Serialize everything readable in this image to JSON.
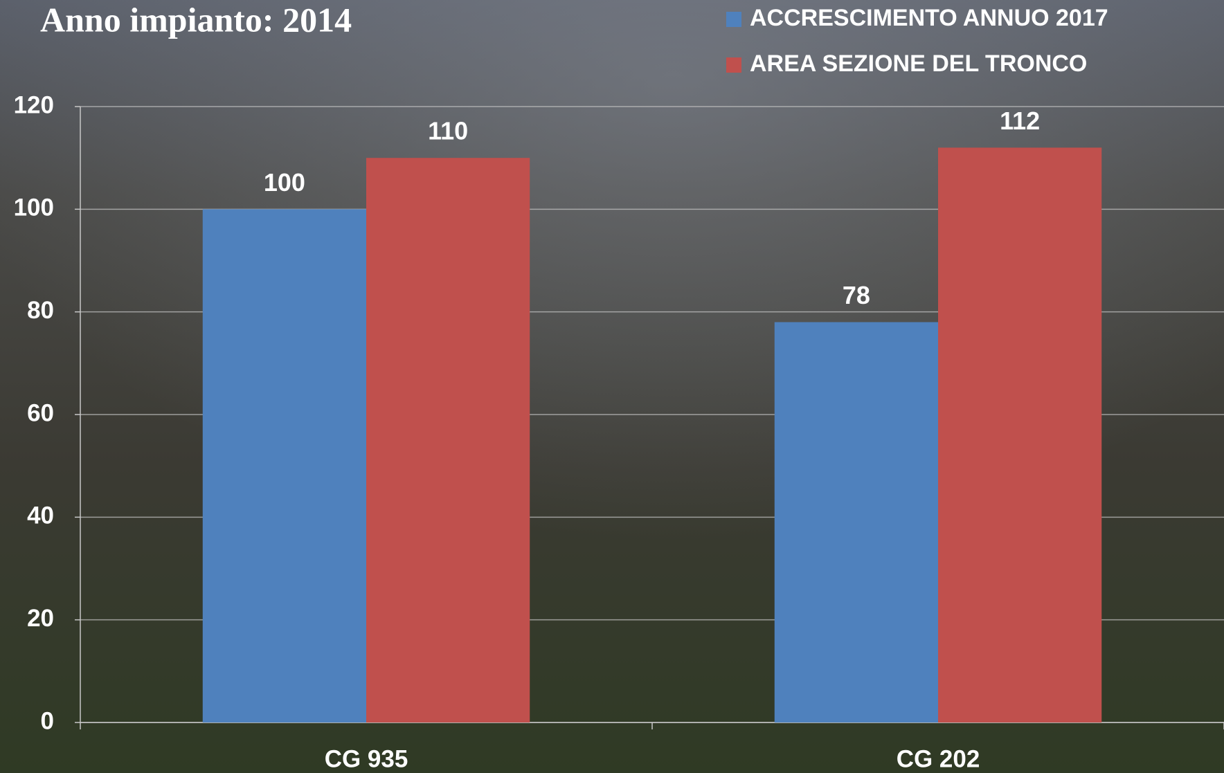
{
  "chart_data": {
    "type": "bar",
    "title": "Anno impianto: 2014",
    "categories": [
      "CG 935",
      "CG 202"
    ],
    "series": [
      {
        "name": "ACCRESCIMENTO ANNUO 2017",
        "color": "#4f81bd",
        "values": [
          100,
          78
        ]
      },
      {
        "name": "AREA SEZIONE DEL TRONCO",
        "color": "#c0504d",
        "values": [
          110,
          112
        ]
      }
    ],
    "ylim": [
      0,
      120
    ],
    "yticks": [
      0,
      20,
      40,
      60,
      80,
      100,
      120
    ],
    "grid": true,
    "legend": "top-right"
  }
}
